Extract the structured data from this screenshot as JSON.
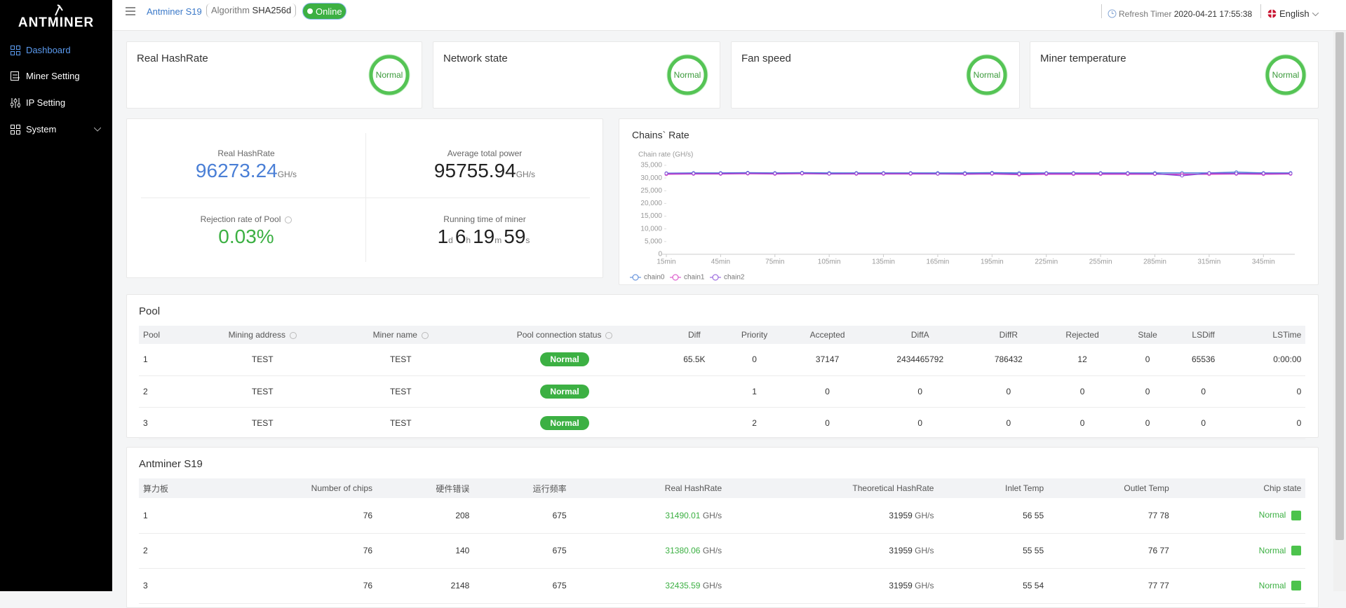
{
  "sidebar": {
    "logo": "ANTMINER",
    "menu": [
      "Dashboard",
      "Miner Setting",
      "IP Setting",
      "System"
    ]
  },
  "header": {
    "model": "Antminer S19",
    "algorithm_label": "Algorithm",
    "algorithm": "SHA256d",
    "status": "Online",
    "refresh_label": "Refresh Timer",
    "refresh_time": "2020-04-21 17:55:38",
    "language": "English"
  },
  "status_cards": [
    {
      "title": "Real HashRate",
      "state": "Normal"
    },
    {
      "title": "Network state",
      "state": "Normal"
    },
    {
      "title": "Fan speed",
      "state": "Normal"
    },
    {
      "title": "Miner temperature",
      "state": "Normal"
    }
  ],
  "summary": {
    "hashrate": {
      "label": "Real HashRate",
      "value": "96273.24",
      "unit": "GH/s"
    },
    "power": {
      "label": "Average total power",
      "value": "95755.94",
      "unit": "GH/s"
    },
    "rejection": {
      "label": "Rejection rate of Pool",
      "value": "0.03%"
    },
    "runtime": {
      "label": "Running time of miner",
      "parts": [
        {
          "n": "1",
          "u": "d"
        },
        {
          "n": "6",
          "u": "h"
        },
        {
          "n": "19",
          "u": "m"
        },
        {
          "n": "59",
          "u": "s"
        }
      ]
    }
  },
  "chart_data": {
    "type": "line",
    "title": "Chains` Rate",
    "y_label": "Chain rate (GH/s)",
    "categories": [
      "15min",
      null,
      "45min",
      null,
      "75min",
      null,
      "105min",
      null,
      "135min",
      null,
      "165min",
      null,
      "195min",
      null,
      "225min",
      null,
      "255min",
      null,
      "285min",
      null,
      "315min",
      null,
      "345min",
      null
    ],
    "series": [
      {
        "name": "chain0",
        "color": "#4a7fd6",
        "values": [
          31900,
          32000,
          32000,
          32100,
          32000,
          32100,
          32000,
          32000,
          32000,
          32000,
          32000,
          32000,
          32100,
          32000,
          32000,
          32000,
          32000,
          32000,
          32000,
          32000,
          32000,
          32300,
          32000,
          32000
        ]
      },
      {
        "name": "chain1",
        "color": "#d63fc4",
        "values": [
          31500,
          31600,
          31600,
          31700,
          31600,
          31700,
          31600,
          31600,
          31600,
          31600,
          31600,
          31500,
          31600,
          31300,
          31500,
          31500,
          31500,
          31500,
          31500,
          31500,
          31500,
          31600,
          31500,
          31600
        ]
      },
      {
        "name": "chain2",
        "color": "#8a4fd8",
        "values": [
          31800,
          31800,
          31800,
          31900,
          31800,
          31900,
          31700,
          31800,
          31800,
          31800,
          31700,
          31700,
          31800,
          31600,
          31800,
          31800,
          31800,
          31800,
          31700,
          30900,
          31900,
          31800,
          31800,
          31800
        ]
      }
    ],
    "ylim": [
      0,
      35000
    ],
    "yticks": [
      0,
      {
        "value": 5000,
        "label": "5,000"
      },
      {
        "value": 10000,
        "label": "10,000"
      },
      {
        "value": 15000,
        "label": "15,000"
      },
      {
        "value": 20000,
        "label": "20,000"
      },
      {
        "value": 25000,
        "label": "25,000"
      },
      {
        "value": 30000,
        "label": "30,000"
      },
      {
        "value": 35000,
        "label": "35,000"
      }
    ],
    "grid": false,
    "legend": "bottom-left"
  },
  "pool": {
    "title": "Pool",
    "columns": [
      "Pool",
      "Mining address",
      "Miner name",
      "Pool connection status",
      "Diff",
      "Priority",
      "Accepted",
      "DiffA",
      "DiffR",
      "Rejected",
      "Stale",
      "LSDiff",
      "LSTime"
    ],
    "rows": [
      [
        "1",
        "TEST",
        "TEST",
        "Normal",
        "65.5K",
        "0",
        "37147",
        "2434465792",
        "786432",
        "12",
        "0",
        "65536",
        "0:00:00"
      ],
      [
        "2",
        "TEST",
        "TEST",
        "Normal",
        null,
        "1",
        "0",
        "0",
        "0",
        "0",
        "0",
        "0",
        "0"
      ],
      [
        "3",
        "TEST",
        "TEST",
        "Normal",
        null,
        "2",
        "0",
        "0",
        "0",
        "0",
        "0",
        "0",
        "0"
      ]
    ]
  },
  "boards": {
    "title": "Antminer S19",
    "unit": "GH/s",
    "columns": [
      "算力板",
      "Number of chips",
      "硬件错误",
      "运行频率",
      "Real HashRate",
      "Theoretical HashRate",
      "Inlet Temp",
      "Outlet Temp",
      "Chip state"
    ],
    "rows": [
      [
        "1",
        "76",
        "208",
        "675",
        "31490.01",
        "31959",
        "56 55",
        "77 78",
        "Normal"
      ],
      [
        "2",
        "76",
        "140",
        "675",
        "31380.06",
        "31959",
        "55 55",
        "76 77",
        "Normal"
      ],
      [
        "3",
        "76",
        "2148",
        "675",
        "32435.59",
        "31959",
        "55 54",
        "77 77",
        "Normal"
      ]
    ]
  }
}
